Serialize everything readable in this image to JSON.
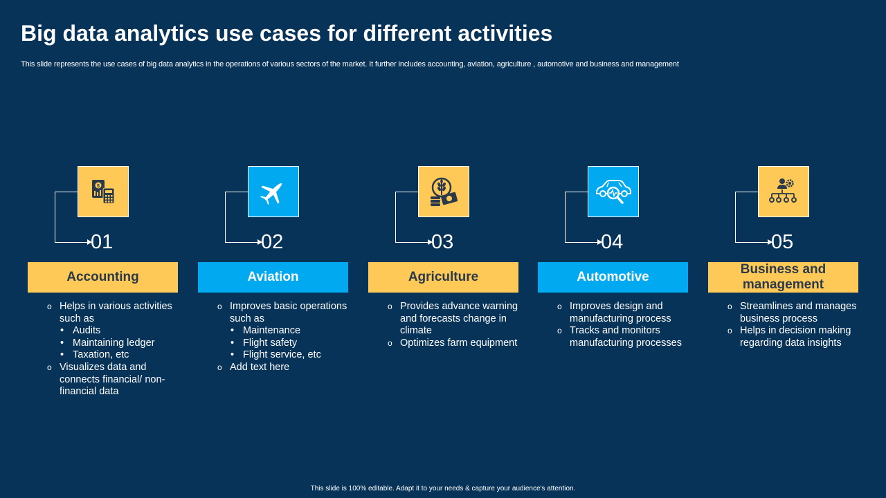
{
  "title": "Big data analytics use cases for different activities",
  "subtitle": "This slide represents the use cases of big data analytics in the operations of various sectors of the market. It further includes accounting, aviation, agriculture , automotive and business and management",
  "footer": "This slide is 100% editable.  Adapt it to your needs & capture your audience's attention.",
  "colors": {
    "background": "#083358",
    "yellow": "#ffc957",
    "blue": "#00a9f0"
  },
  "cards": [
    {
      "number": "01",
      "label": "Accounting",
      "color": "yellow",
      "icon": "finance-document-calculator-icon",
      "bullets": [
        {
          "level": 1,
          "text": "Helps in various activities such as"
        },
        {
          "level": 2,
          "text": "Audits"
        },
        {
          "level": 2,
          "text": "Maintaining ledger"
        },
        {
          "level": 2,
          "text": "Taxation, etc"
        },
        {
          "level": 1,
          "text": "Visualizes data and connects financial/ non-financial data"
        }
      ]
    },
    {
      "number": "02",
      "label": "Aviation",
      "color": "blue",
      "icon": "airplane-icon",
      "bullets": [
        {
          "level": 1,
          "text": "Improves basic operations such as"
        },
        {
          "level": 2,
          "text": "Maintenance"
        },
        {
          "level": 2,
          "text": "Flight safety"
        },
        {
          "level": 2,
          "text": "Flight service, etc"
        },
        {
          "level": 1,
          "text": "Add text here"
        }
      ]
    },
    {
      "number": "03",
      "label": "Agriculture",
      "color": "yellow",
      "icon": "wheat-money-icon",
      "bullets": [
        {
          "level": 1,
          "text": "Provides advance warning and forecasts change in climate"
        },
        {
          "level": 1,
          "text": "Optimizes farm equipment"
        }
      ]
    },
    {
      "number": "04",
      "label": "Automotive",
      "color": "blue",
      "icon": "car-inspection-icon",
      "bullets": [
        {
          "level": 1,
          "text": "Improves design and manufacturing process"
        },
        {
          "level": 1,
          "text": "Tracks and monitors manufacturing processes"
        }
      ]
    },
    {
      "number": "05",
      "label": "Business and management",
      "color": "yellow",
      "icon": "organization-gear-icon",
      "bullets": [
        {
          "level": 1,
          "text": "Streamlines and manages business process"
        },
        {
          "level": 1,
          "text": "Helps in decision making regarding data insights"
        }
      ]
    }
  ]
}
